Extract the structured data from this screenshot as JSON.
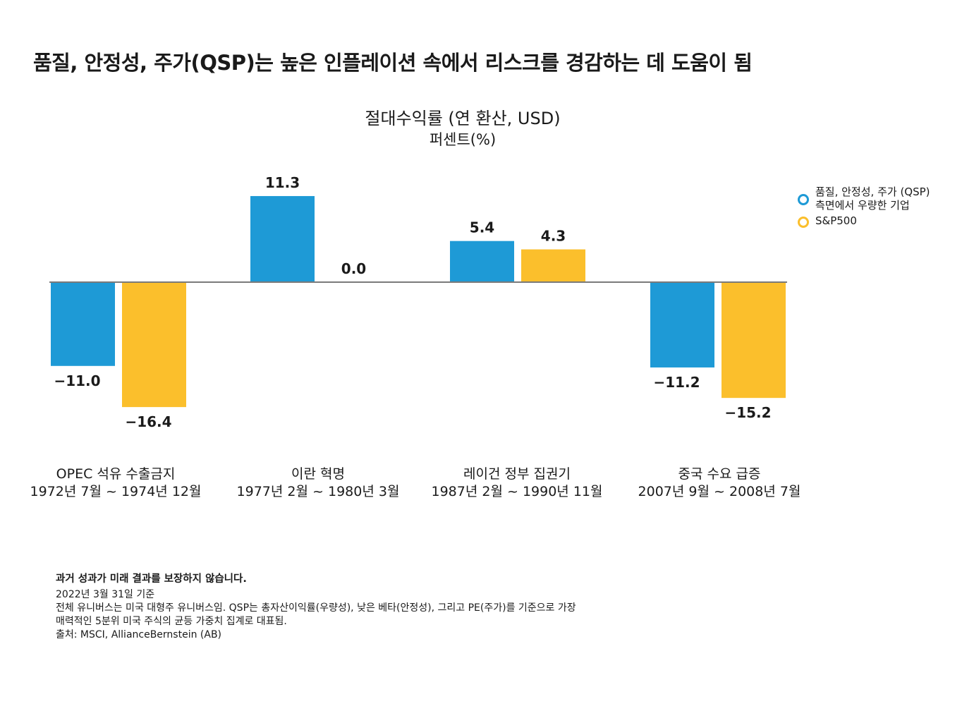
{
  "headline": "품질, 안정성, 주가(QSP)는 높은 인플레이션 속에서 리스크를 경감하는 데 도움이 됨",
  "chart_data": {
    "type": "bar",
    "title": "절대수익률 (연 환산, USD)",
    "subtitle": "퍼센트(%)",
    "categories": [
      {
        "name": "OPEC 석유 수출금지",
        "period": "1972년 7월 ~ 1974년 12월"
      },
      {
        "name": "이란 혁명",
        "period": "1977년 2월 ~ 1980년 3월"
      },
      {
        "name": "레이건 정부 집권기",
        "period": "1987년 2월 ~ 1990년 11월"
      },
      {
        "name": "중국 수요 급증",
        "period": "2007년 9월 ~ 2008년 7월"
      }
    ],
    "series": [
      {
        "name": "품질, 안정성, 주가 (QSP) 측면에서 우량한 기업",
        "legend_lines": [
          "품질, 안정성, 주가 (QSP)",
          "측면에서 우량한 기업"
        ],
        "color": "#1e9ad6",
        "values": [
          -11.0,
          11.3,
          5.4,
          -11.2
        ]
      },
      {
        "name": "S&P500",
        "legend_lines": [
          "S&P500"
        ],
        "color": "#fbbf2c",
        "values": [
          -16.4,
          0.0,
          4.3,
          -15.2
        ]
      }
    ],
    "value_labels": [
      [
        "−11.0",
        "11.3",
        "5.4",
        "−11.2"
      ],
      [
        "−16.4",
        "0.0",
        "4.3",
        "−15.2"
      ]
    ],
    "legend_position": "right",
    "grid": false
  },
  "footnotes": {
    "disclaimer": "과거 성과가 미래 결과를 보장하지 않습니다.",
    "lines": [
      "2022년 3월 31일 기준",
      "전체 유니버스는 미국 대형주 유니버스임. QSP는 총자산이익률(우량성), 낮은 베타(안정성), 그리고 PE(주가)를 기준으로 가장",
      "매력적인 5분위 미국 주식의 균등 가중치 집계로 대표됨.",
      "출처: MSCI, AllianceBernstein (AB)"
    ]
  }
}
